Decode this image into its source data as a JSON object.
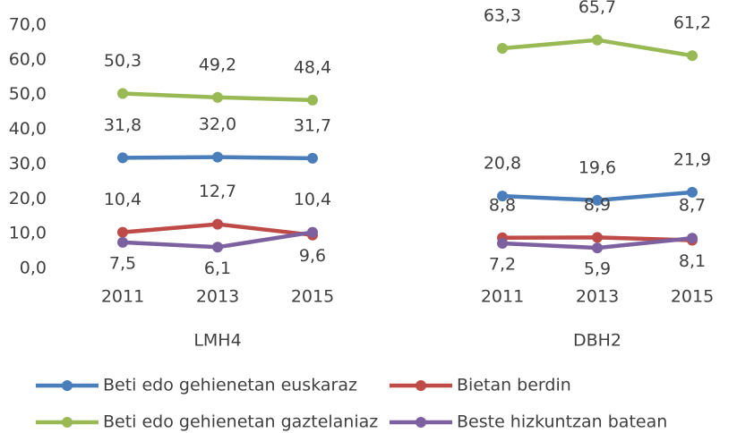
{
  "chart_data": {
    "type": "line",
    "categories": [
      "2011",
      "2013",
      "2015",
      null,
      "2011",
      "2013",
      "2015"
    ],
    "group_labels": [
      "LMH4",
      "DBH2"
    ],
    "ylim": [
      0,
      70
    ],
    "yticks": [
      {
        "value": 0,
        "label": "0,0"
      },
      {
        "value": 10,
        "label": "10,0"
      },
      {
        "value": 20,
        "label": "20,0"
      },
      {
        "value": 30,
        "label": "30,0"
      },
      {
        "value": 40,
        "label": "40,0"
      },
      {
        "value": 50,
        "label": "50,0"
      },
      {
        "value": 60,
        "label": "60,0"
      },
      {
        "value": 70,
        "label": "70,0"
      }
    ],
    "series": [
      {
        "name": "Beti edo gehienetan euskaraz",
        "color": "#4a7ebb",
        "values": [
          31.8,
          32.0,
          31.7,
          null,
          20.8,
          19.6,
          21.9
        ],
        "value_labels": [
          "31,8",
          "32,0",
          "31,7",
          null,
          "20,8",
          "19,6",
          "21,9"
        ]
      },
      {
        "name": "Bietan berdin",
        "color": "#be4b48",
        "values": [
          10.4,
          12.7,
          9.6,
          null,
          8.8,
          8.9,
          8.1
        ],
        "value_labels": [
          "10,4",
          "12,7",
          "9,6",
          null,
          "8,8",
          "8,9",
          "8,1"
        ]
      },
      {
        "name": "Beti edo gehienetan gaztelaniaz",
        "color": "#98b954",
        "values": [
          50.3,
          49.2,
          48.4,
          null,
          63.3,
          65.7,
          61.2
        ],
        "value_labels": [
          "50,3",
          "49,2",
          "48,4",
          null,
          "63,3",
          "65,7",
          "61,2"
        ]
      },
      {
        "name": "Beste hizkuntzan batean",
        "color": "#7d60a0",
        "values": [
          7.5,
          6.1,
          10.4,
          null,
          7.2,
          5.9,
          8.7
        ],
        "value_labels": [
          "7,5",
          "6,1",
          "10,4",
          null,
          "7,2",
          "5,9",
          "8,7"
        ]
      }
    ]
  }
}
